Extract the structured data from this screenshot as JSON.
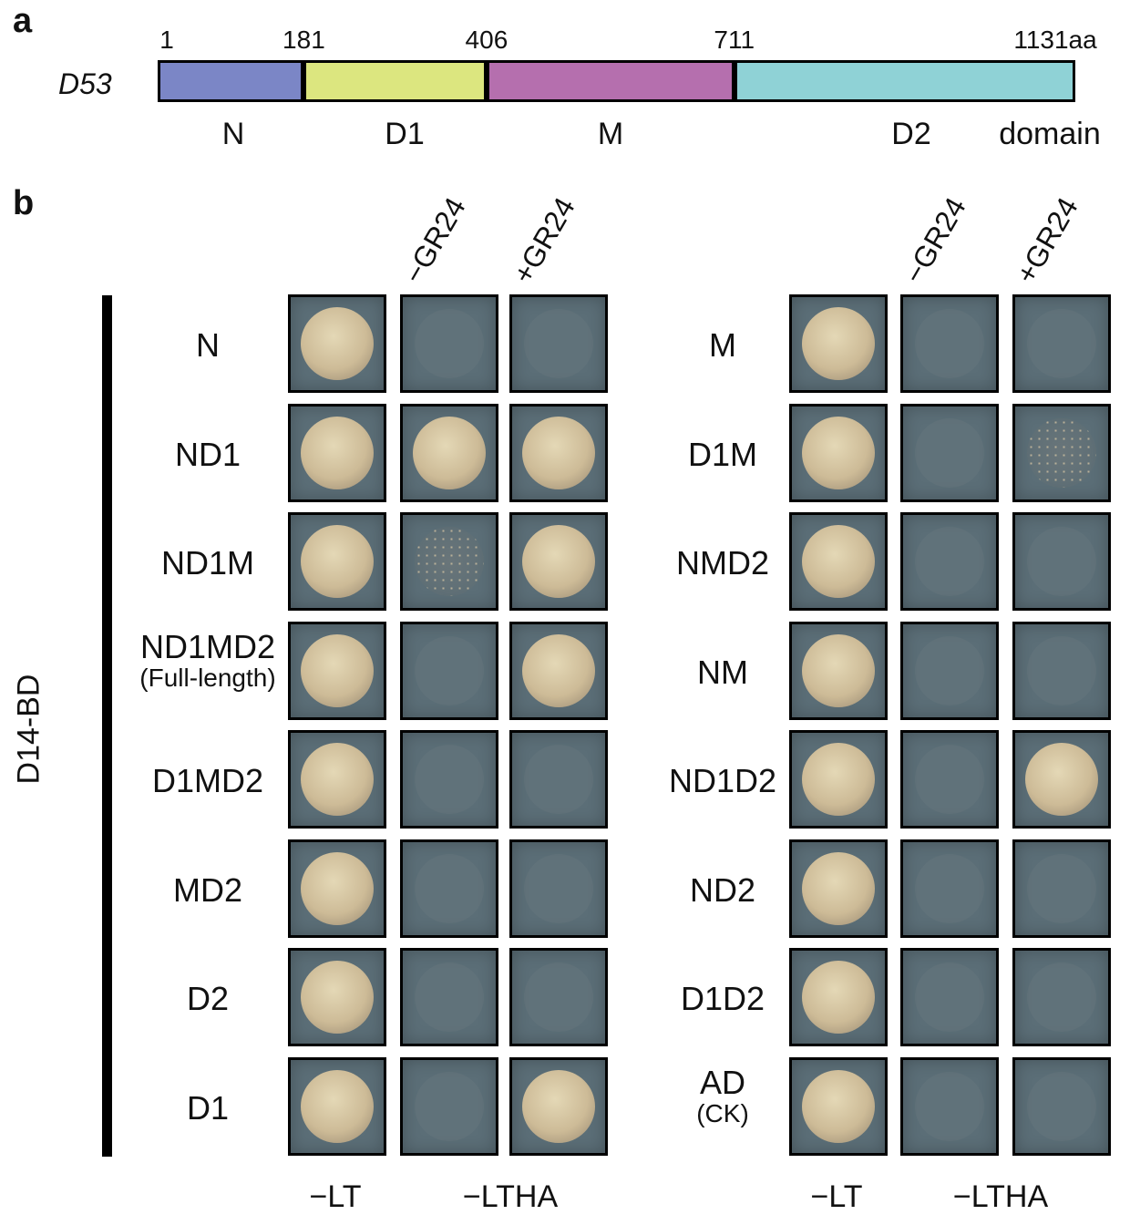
{
  "panel_a": {
    "letter": "a",
    "gene": "D53",
    "positions": [
      "1",
      "181",
      "406",
      "711",
      "1131aa"
    ],
    "domains": [
      {
        "label": "N",
        "start": 1,
        "end": 181,
        "color": "#7b86c6"
      },
      {
        "label": "D1",
        "start": 181,
        "end": 406,
        "color": "#dce67f"
      },
      {
        "label": "M",
        "start": 406,
        "end": 711,
        "color": "#b56fae"
      },
      {
        "label": "D2",
        "start": 711,
        "end": 1131,
        "color": "#8fd2d6"
      }
    ],
    "domain_word": "domain"
  },
  "panel_b": {
    "letter": "b",
    "side_label": "D14-BD",
    "conditions": [
      "−GR24",
      "+GR24"
    ],
    "bottom_labels": [
      "−LT",
      "−LTHA"
    ],
    "left_rows": [
      {
        "label": "N",
        "sub": "",
        "growth": [
          "strong",
          "none",
          "none"
        ]
      },
      {
        "label": "ND1",
        "sub": "",
        "growth": [
          "strong",
          "strong",
          "strong"
        ]
      },
      {
        "label": "ND1M",
        "sub": "",
        "growth": [
          "strong",
          "weak",
          "strong"
        ]
      },
      {
        "label": "ND1MD2",
        "sub": "(Full-length)",
        "growth": [
          "strong",
          "none",
          "strong"
        ]
      },
      {
        "label": "D1MD2",
        "sub": "",
        "growth": [
          "strong",
          "none",
          "none"
        ]
      },
      {
        "label": "MD2",
        "sub": "",
        "growth": [
          "strong",
          "none",
          "none"
        ]
      },
      {
        "label": "D2",
        "sub": "",
        "growth": [
          "strong",
          "none",
          "none"
        ]
      },
      {
        "label": "D1",
        "sub": "",
        "growth": [
          "strong",
          "none",
          "strong"
        ]
      }
    ],
    "right_rows": [
      {
        "label": "M",
        "sub": "",
        "growth": [
          "strong",
          "none",
          "none"
        ]
      },
      {
        "label": "D1M",
        "sub": "",
        "growth": [
          "strong",
          "none",
          "weak"
        ]
      },
      {
        "label": "NMD2",
        "sub": "",
        "growth": [
          "strong",
          "none",
          "none"
        ]
      },
      {
        "label": "NM",
        "sub": "",
        "growth": [
          "strong",
          "none",
          "none"
        ]
      },
      {
        "label": "ND1D2",
        "sub": "",
        "growth": [
          "strong",
          "none",
          "strong"
        ]
      },
      {
        "label": "ND2",
        "sub": "",
        "growth": [
          "strong",
          "none",
          "none"
        ]
      },
      {
        "label": "D1D2",
        "sub": "",
        "growth": [
          "strong",
          "none",
          "none"
        ]
      },
      {
        "label": "AD",
        "sub": "(CK)",
        "growth": [
          "strong",
          "none",
          "none"
        ]
      }
    ]
  }
}
